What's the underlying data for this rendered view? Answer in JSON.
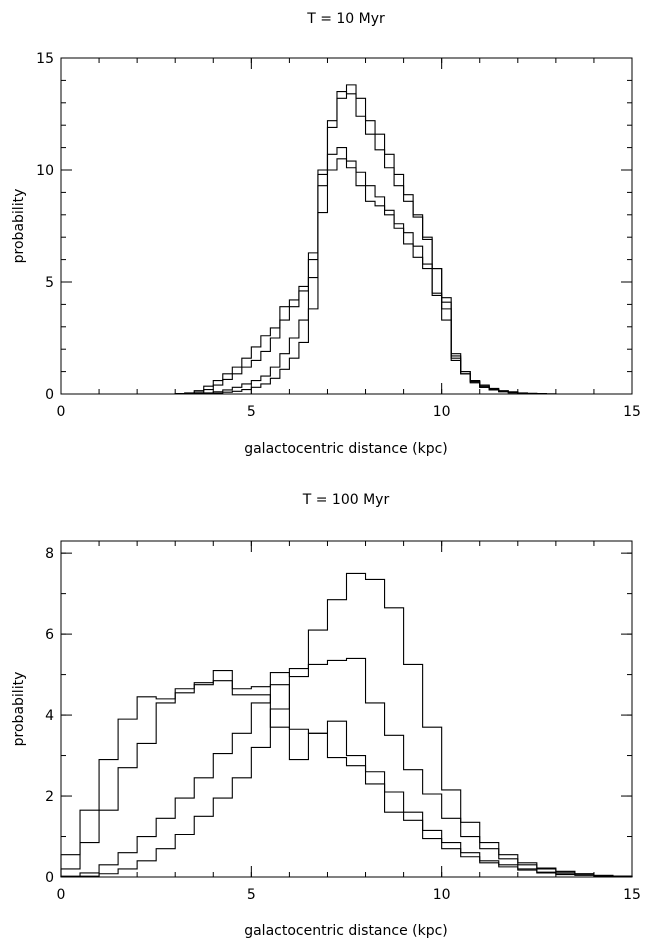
{
  "chart_data": [
    {
      "type": "line",
      "step": true,
      "title": "T = 10 Myr",
      "xlabel": "galactocentric distance (kpc)",
      "ylabel": "probability",
      "xlim": [
        0,
        15
      ],
      "ylim": [
        0,
        15
      ],
      "xticks": [
        0,
        5,
        10,
        15
      ],
      "yticks": [
        0,
        5,
        10,
        15
      ],
      "x_minor_step": 1,
      "y_minor_step": 1,
      "grid": false,
      "bin_edges": [
        3.0,
        3.25,
        3.5,
        3.75,
        4.0,
        4.25,
        4.5,
        4.75,
        5.0,
        5.25,
        5.5,
        5.75,
        6.0,
        6.25,
        6.5,
        6.75,
        7.0,
        7.25,
        7.5,
        7.75,
        8.0,
        8.25,
        8.5,
        8.75,
        9.0,
        9.25,
        9.5,
        9.75,
        10.0,
        10.25,
        10.5,
        10.75,
        11.0,
        11.25,
        11.5,
        11.75,
        12.0,
        12.25,
        12.5,
        12.75,
        13.0
      ],
      "series": [
        {
          "values": [
            0.02,
            0.05,
            0.15,
            0.35,
            0.6,
            0.9,
            1.2,
            1.6,
            2.1,
            2.6,
            2.95,
            3.9,
            4.2,
            4.8,
            6.3,
            10.0,
            10.0,
            10.5,
            10.1,
            9.3,
            8.6,
            8.4,
            8.0,
            7.4,
            6.7,
            6.1,
            5.8,
            4.5,
            3.8,
            1.6,
            1.0,
            0.6,
            0.4,
            0.25,
            0.15,
            0.1,
            0.05,
            0.03,
            0.02,
            0.01
          ]
        },
        {
          "values": [
            0.01,
            0.03,
            0.08,
            0.2,
            0.4,
            0.65,
            0.9,
            1.2,
            1.5,
            1.9,
            2.5,
            3.3,
            3.9,
            4.6,
            6.0,
            9.8,
            10.7,
            11.0,
            10.4,
            9.9,
            9.3,
            8.8,
            8.2,
            7.6,
            7.2,
            6.6,
            5.6,
            4.4,
            3.3,
            1.5,
            0.9,
            0.55,
            0.35,
            0.2,
            0.12,
            0.08,
            0.04,
            0.02,
            0.01,
            0.0
          ]
        },
        {
          "values": [
            0.0,
            0.01,
            0.02,
            0.05,
            0.1,
            0.18,
            0.3,
            0.45,
            0.6,
            0.8,
            1.2,
            1.8,
            2.5,
            3.3,
            5.2,
            9.3,
            12.2,
            13.5,
            13.4,
            12.4,
            11.6,
            10.9,
            10.1,
            9.3,
            8.6,
            7.9,
            6.9,
            5.6,
            4.1,
            1.7,
            0.9,
            0.5,
            0.3,
            0.18,
            0.1,
            0.06,
            0.03,
            0.02,
            0.01,
            0.0
          ]
        },
        {
          "values": [
            0.0,
            0.0,
            0.01,
            0.02,
            0.04,
            0.08,
            0.12,
            0.2,
            0.3,
            0.45,
            0.7,
            1.1,
            1.6,
            2.3,
            3.8,
            8.1,
            11.9,
            13.2,
            13.8,
            13.2,
            12.2,
            11.6,
            10.7,
            9.8,
            8.9,
            8.0,
            7.0,
            5.6,
            4.3,
            1.8,
            1.0,
            0.55,
            0.3,
            0.18,
            0.1,
            0.06,
            0.03,
            0.02,
            0.01,
            0.0
          ]
        }
      ]
    },
    {
      "type": "line",
      "step": true,
      "title": "T = 100 Myr",
      "xlabel": "galactocentric distance (kpc)",
      "ylabel": "probability",
      "xlim": [
        0,
        15
      ],
      "ylim": [
        0,
        8.3
      ],
      "xticks": [
        0,
        5,
        10,
        15
      ],
      "yticks": [
        0,
        2,
        4,
        6,
        8
      ],
      "x_minor_step": 1,
      "y_minor_step": 1,
      "grid": false,
      "bin_edges": [
        0.0,
        0.5,
        1.0,
        1.5,
        2.0,
        2.5,
        3.0,
        3.5,
        4.0,
        4.5,
        5.0,
        5.5,
        6.0,
        6.5,
        7.0,
        7.5,
        8.0,
        8.5,
        9.0,
        9.5,
        10.0,
        10.5,
        11.0,
        11.5,
        12.0,
        12.5,
        13.0,
        13.5,
        14.0,
        14.5,
        15.0
      ],
      "series": [
        {
          "values": [
            0.55,
            1.65,
            2.9,
            3.9,
            4.45,
            4.4,
            4.65,
            4.75,
            5.1,
            4.5,
            4.5,
            3.7,
            2.9,
            3.55,
            3.85,
            3.0,
            2.6,
            2.1,
            1.6,
            1.15,
            0.85,
            0.6,
            0.4,
            0.3,
            0.2,
            0.12,
            0.08,
            0.05,
            0.03,
            0.02
          ]
        },
        {
          "values": [
            0.2,
            0.85,
            1.65,
            2.7,
            3.3,
            4.3,
            4.55,
            4.8,
            4.85,
            4.65,
            4.7,
            4.75,
            3.65,
            3.55,
            2.95,
            2.75,
            2.3,
            1.6,
            1.4,
            0.95,
            0.7,
            0.5,
            0.35,
            0.25,
            0.17,
            0.1,
            0.06,
            0.04,
            0.02,
            0.01
          ]
        },
        {
          "values": [
            0.02,
            0.1,
            0.3,
            0.6,
            1.0,
            1.45,
            1.95,
            2.45,
            3.05,
            3.55,
            4.3,
            5.05,
            4.95,
            5.25,
            5.35,
            5.4,
            4.3,
            3.5,
            2.65,
            2.05,
            1.45,
            1.0,
            0.7,
            0.45,
            0.3,
            0.2,
            0.12,
            0.08,
            0.04,
            0.02
          ]
        },
        {
          "values": [
            0.0,
            0.02,
            0.08,
            0.2,
            0.4,
            0.7,
            1.05,
            1.5,
            1.95,
            2.45,
            3.2,
            4.15,
            5.15,
            6.1,
            6.85,
            7.5,
            7.35,
            6.65,
            5.25,
            3.7,
            2.15,
            1.35,
            0.85,
            0.55,
            0.35,
            0.22,
            0.14,
            0.08,
            0.04,
            0.02
          ]
        }
      ]
    }
  ]
}
